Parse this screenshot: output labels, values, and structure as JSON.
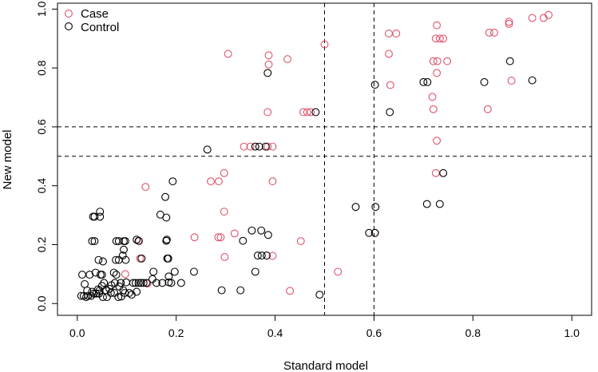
{
  "chart_data": {
    "type": "scatter",
    "title": "",
    "xlabel": "Standard model",
    "ylabel": "New model",
    "xlim": [
      -0.04,
      1.04
    ],
    "ylim": [
      -0.04,
      1.02
    ],
    "xticks": [
      0.0,
      0.2,
      0.4,
      0.6,
      0.8,
      1.0
    ],
    "xtick_labels": [
      "0.0",
      "0.2",
      "0.4",
      "0.6",
      "0.8",
      "1.0"
    ],
    "yticks": [
      0.0,
      0.2,
      0.4,
      0.6,
      0.8,
      1.0
    ],
    "ytick_labels": [
      "0.0",
      "0.2",
      "0.4",
      "0.6",
      "0.8",
      "1.0"
    ],
    "grid": false,
    "legend_position": "top-left",
    "reference_lines": {
      "vertical": [
        0.5,
        0.6
      ],
      "horizontal": [
        0.5,
        0.6
      ]
    },
    "series": [
      {
        "name": "Case",
        "color": "#DF536B",
        "points": [
          [
            0.305,
            0.848
          ],
          [
            0.387,
            0.843
          ],
          [
            0.425,
            0.83
          ],
          [
            0.5,
            0.88
          ],
          [
            0.387,
            0.812
          ],
          [
            0.385,
            0.65
          ],
          [
            0.457,
            0.65
          ],
          [
            0.465,
            0.65
          ],
          [
            0.472,
            0.65
          ],
          [
            0.337,
            0.533
          ],
          [
            0.35,
            0.533
          ],
          [
            0.36,
            0.533
          ],
          [
            0.385,
            0.533
          ],
          [
            0.395,
            0.533
          ],
          [
            0.138,
            0.396
          ],
          [
            0.27,
            0.415
          ],
          [
            0.286,
            0.415
          ],
          [
            0.297,
            0.443
          ],
          [
            0.395,
            0.415
          ],
          [
            0.297,
            0.312
          ],
          [
            0.237,
            0.225
          ],
          [
            0.285,
            0.225
          ],
          [
            0.29,
            0.225
          ],
          [
            0.318,
            0.238
          ],
          [
            0.452,
            0.212
          ],
          [
            0.298,
            0.158
          ],
          [
            0.395,
            0.162
          ],
          [
            0.097,
            0.1
          ],
          [
            0.142,
            0.068
          ],
          [
            0.127,
            0.153
          ],
          [
            0.43,
            0.043
          ],
          [
            0.527,
            0.108
          ],
          [
            0.125,
            0.212
          ],
          [
            0.602,
            0.24
          ],
          [
            0.63,
            0.917
          ],
          [
            0.645,
            0.917
          ],
          [
            0.725,
            0.9
          ],
          [
            0.733,
            0.9
          ],
          [
            0.74,
            0.9
          ],
          [
            0.727,
            0.945
          ],
          [
            0.833,
            0.92
          ],
          [
            0.843,
            0.92
          ],
          [
            0.873,
            0.957
          ],
          [
            0.873,
            0.95
          ],
          [
            0.92,
            0.97
          ],
          [
            0.943,
            0.97
          ],
          [
            0.953,
            0.98
          ],
          [
            0.63,
            0.848
          ],
          [
            0.72,
            0.823
          ],
          [
            0.728,
            0.823
          ],
          [
            0.748,
            0.823
          ],
          [
            0.633,
            0.742
          ],
          [
            0.718,
            0.702
          ],
          [
            0.72,
            0.66
          ],
          [
            0.727,
            0.783
          ],
          [
            0.83,
            0.66
          ],
          [
            0.878,
            0.757
          ],
          [
            0.727,
            0.553
          ],
          [
            0.725,
            0.443
          ]
        ]
      },
      {
        "name": "Control",
        "color": "#000000",
        "points": [
          [
            0.385,
            0.783
          ],
          [
            0.482,
            0.65
          ],
          [
            0.263,
            0.523
          ],
          [
            0.36,
            0.533
          ],
          [
            0.368,
            0.533
          ],
          [
            0.381,
            0.533
          ],
          [
            0.193,
            0.415
          ],
          [
            0.178,
            0.362
          ],
          [
            0.168,
            0.302
          ],
          [
            0.18,
            0.292
          ],
          [
            0.032,
            0.295
          ],
          [
            0.035,
            0.295
          ],
          [
            0.046,
            0.312
          ],
          [
            0.046,
            0.295
          ],
          [
            0.353,
            0.248
          ],
          [
            0.372,
            0.248
          ],
          [
            0.386,
            0.233
          ],
          [
            0.335,
            0.213
          ],
          [
            0.365,
            0.163
          ],
          [
            0.373,
            0.163
          ],
          [
            0.383,
            0.163
          ],
          [
            0.236,
            0.108
          ],
          [
            0.36,
            0.108
          ],
          [
            0.292,
            0.045
          ],
          [
            0.33,
            0.045
          ],
          [
            0.49,
            0.03
          ],
          [
            0.12,
            0.217
          ],
          [
            0.181,
            0.217
          ],
          [
            0.124,
            0.213
          ],
          [
            0.035,
            0.212
          ],
          [
            0.03,
            0.212
          ],
          [
            0.079,
            0.212
          ],
          [
            0.084,
            0.212
          ],
          [
            0.094,
            0.212
          ],
          [
            0.097,
            0.212
          ],
          [
            0.18,
            0.213
          ],
          [
            0.182,
            0.153
          ],
          [
            0.184,
            0.153
          ],
          [
            0.13,
            0.153
          ],
          [
            0.043,
            0.148
          ],
          [
            0.078,
            0.148
          ],
          [
            0.084,
            0.148
          ],
          [
            0.092,
            0.163
          ],
          [
            0.094,
            0.183
          ],
          [
            0.098,
            0.148
          ],
          [
            0.052,
            0.143
          ],
          [
            0.025,
            0.098
          ],
          [
            0.047,
            0.098
          ],
          [
            0.037,
            0.105
          ],
          [
            0.05,
            0.098
          ],
          [
            0.074,
            0.105
          ],
          [
            0.079,
            0.098
          ],
          [
            0.01,
            0.098
          ],
          [
            0.015,
            0.066
          ],
          [
            0.02,
            0.044
          ],
          [
            0.008,
            0.026
          ],
          [
            0.013,
            0.026
          ],
          [
            0.018,
            0.022
          ],
          [
            0.022,
            0.026
          ],
          [
            0.028,
            0.026
          ],
          [
            0.033,
            0.034
          ],
          [
            0.038,
            0.034
          ],
          [
            0.044,
            0.034
          ],
          [
            0.052,
            0.022
          ],
          [
            0.06,
            0.022
          ],
          [
            0.068,
            0.036
          ],
          [
            0.075,
            0.036
          ],
          [
            0.083,
            0.022
          ],
          [
            0.089,
            0.024
          ],
          [
            0.096,
            0.036
          ],
          [
            0.105,
            0.036
          ],
          [
            0.042,
            0.048
          ],
          [
            0.05,
            0.06
          ],
          [
            0.054,
            0.07
          ],
          [
            0.069,
            0.062
          ],
          [
            0.076,
            0.07
          ],
          [
            0.088,
            0.07
          ],
          [
            0.099,
            0.072
          ],
          [
            0.113,
            0.07
          ],
          [
            0.118,
            0.07
          ],
          [
            0.124,
            0.07
          ],
          [
            0.129,
            0.07
          ],
          [
            0.134,
            0.07
          ],
          [
            0.14,
            0.07
          ],
          [
            0.16,
            0.07
          ],
          [
            0.172,
            0.07
          ],
          [
            0.185,
            0.072
          ],
          [
            0.19,
            0.07
          ],
          [
            0.152,
            0.083
          ],
          [
            0.154,
            0.108
          ],
          [
            0.185,
            0.092
          ],
          [
            0.197,
            0.108
          ],
          [
            0.21,
            0.07
          ],
          [
            0.11,
            0.03
          ],
          [
            0.12,
            0.04
          ],
          [
            0.03,
            0.04
          ],
          [
            0.065,
            0.05
          ],
          [
            0.045,
            0.044
          ],
          [
            0.093,
            0.045
          ],
          [
            0.085,
            0.058
          ],
          [
            0.058,
            0.045
          ],
          [
            0.563,
            0.328
          ],
          [
            0.603,
            0.328
          ],
          [
            0.59,
            0.24
          ],
          [
            0.602,
            0.24
          ],
          [
            0.602,
            0.743
          ],
          [
            0.632,
            0.65
          ],
          [
            0.7,
            0.752
          ],
          [
            0.708,
            0.752
          ],
          [
            0.707,
            0.338
          ],
          [
            0.733,
            0.338
          ],
          [
            0.74,
            0.443
          ],
          [
            0.823,
            0.752
          ],
          [
            0.875,
            0.823
          ],
          [
            0.92,
            0.758
          ]
        ]
      }
    ]
  }
}
